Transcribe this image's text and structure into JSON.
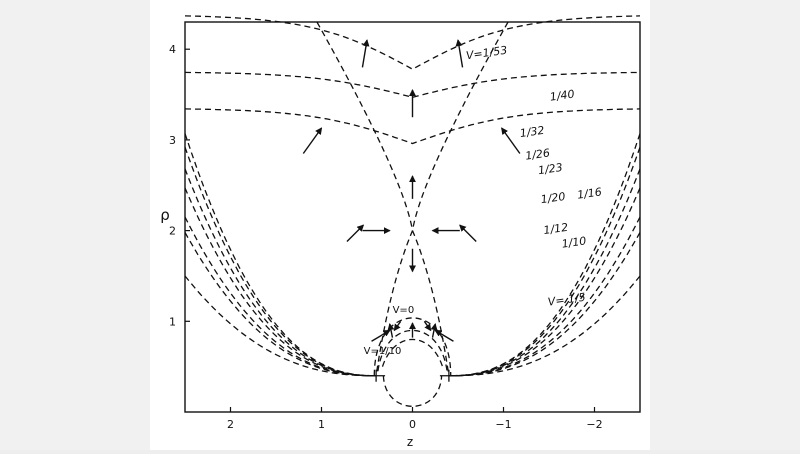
{
  "chart_data": {
    "type": "line",
    "xlabel": "z",
    "ylabel": "ρ",
    "xlim": [
      2.5,
      -2.5
    ],
    "ylim": [
      0,
      4.3
    ],
    "x_ticks": [
      2,
      1,
      0,
      -1,
      -2
    ],
    "x_tick_labels": [
      "2",
      "1",
      "0",
      "−1",
      "−2"
    ],
    "y_ticks": [
      1,
      2,
      3,
      4
    ],
    "y_tick_labels": [
      "1",
      "2",
      "3",
      "4"
    ],
    "grid": false,
    "saddle_point": {
      "z": 0,
      "rho": 2.0
    },
    "series": [
      {
        "name": "V=1/53",
        "rho_center": 3.78,
        "rho_edge": 4.38,
        "label_z": -0.82,
        "label_rho": 3.92
      },
      {
        "name": "1/40",
        "rho_center": 3.47,
        "rho_edge": 3.75,
        "label_z": -1.65,
        "label_rho": 3.45
      },
      {
        "name": "1/32",
        "rho_center": 2.96,
        "rho_edge": 3.35,
        "label_z": -1.32,
        "label_rho": 3.05
      },
      {
        "name": "1/26",
        "rho_center": null,
        "rho_edge": 3.07,
        "label_z": -1.38,
        "label_rho": 2.8
      },
      {
        "name": "1/23",
        "rho_center": null,
        "rho_edge": 2.92,
        "label_z": -1.52,
        "label_rho": 2.64
      },
      {
        "name": "1/20",
        "rho_center": null,
        "rho_edge": 2.68,
        "label_z": -1.55,
        "label_rho": 2.32
      },
      {
        "name": "1/16",
        "rho_center": null,
        "rho_edge": 2.47,
        "label_z": -1.95,
        "label_rho": 2.37
      },
      {
        "name": "1/12",
        "rho_center": null,
        "rho_edge": 2.15,
        "label_z": -1.58,
        "label_rho": 1.98
      },
      {
        "name": "1/10",
        "rho_center": null,
        "rho_edge": 1.98,
        "label_z": -1.78,
        "label_rho": 1.83
      },
      {
        "name": "V= 1/5",
        "rho_center": null,
        "rho_edge": 1.5,
        "label_z": -1.7,
        "label_rho": 1.2
      }
    ],
    "inner_labels": [
      {
        "text": "V=0",
        "z": 0.1,
        "rho": 1.09
      },
      {
        "text": "V=1/10",
        "z": 0.33,
        "rho": 0.64
      }
    ],
    "field_arrows": [
      {
        "z": 0.55,
        "rho": 3.8,
        "dz": -0.05,
        "drho": 0.3
      },
      {
        "z": -0.55,
        "rho": 3.8,
        "dz": 0.05,
        "drho": 0.3
      },
      {
        "z": 0.0,
        "rho": 3.25,
        "dz": 0.0,
        "drho": 0.3
      },
      {
        "z": 1.2,
        "rho": 2.85,
        "dz": -0.2,
        "drho": 0.28
      },
      {
        "z": -1.18,
        "rho": 2.85,
        "dz": 0.2,
        "drho": 0.28
      },
      {
        "z": 0.0,
        "rho": 2.35,
        "dz": 0.0,
        "drho": 0.25
      },
      {
        "z": 0.72,
        "rho": 1.88,
        "dz": -0.18,
        "drho": 0.18
      },
      {
        "z": -0.7,
        "rho": 1.88,
        "dz": 0.18,
        "drho": 0.18
      },
      {
        "z": 0.55,
        "rho": 2.0,
        "dz": -0.3,
        "drho": 0.0
      },
      {
        "z": -0.52,
        "rho": 2.0,
        "dz": 0.3,
        "drho": 0.0
      },
      {
        "z": 0.0,
        "rho": 1.8,
        "dz": 0.0,
        "drho": -0.25
      },
      {
        "z": 0.22,
        "rho": 0.82,
        "dz": 0.03,
        "drho": 0.15
      },
      {
        "z": 0.0,
        "rho": 0.82,
        "dz": 0.0,
        "drho": 0.16
      },
      {
        "z": -0.22,
        "rho": 0.82,
        "dz": -0.03,
        "drho": 0.15
      },
      {
        "z": 0.13,
        "rho": 1.0,
        "dz": 0.07,
        "drho": -0.1
      },
      {
        "z": -0.13,
        "rho": 1.0,
        "dz": -0.07,
        "drho": -0.1
      },
      {
        "z": 0.45,
        "rho": 0.78,
        "dz": -0.2,
        "drho": 0.12
      },
      {
        "z": -0.45,
        "rho": 0.78,
        "dz": 0.2,
        "drho": 0.12
      }
    ]
  }
}
